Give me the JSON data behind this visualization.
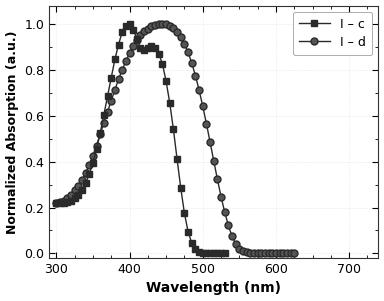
{
  "title": "",
  "xlabel": "Wavelength (nm)",
  "ylabel": "Normalized Absorption (a.u.)",
  "xlim": [
    290,
    740
  ],
  "ylim": [
    -0.02,
    1.08
  ],
  "xticks": [
    300,
    400,
    500,
    600,
    700
  ],
  "yticks": [
    0.0,
    0.2,
    0.4,
    0.6,
    0.8,
    1.0
  ],
  "line_color": "#2a2a2a",
  "legend_labels": [
    "I – c",
    "I – d"
  ],
  "background_color": "#ffffff",
  "marker_c": "s",
  "marker_d": "o",
  "markersize_c": 4,
  "markersize_d": 5,
  "curve_c": {
    "x": [
      300,
      305,
      310,
      315,
      320,
      325,
      330,
      335,
      340,
      345,
      350,
      355,
      360,
      365,
      370,
      375,
      380,
      385,
      390,
      395,
      400,
      405,
      410,
      415,
      420,
      425,
      430,
      435,
      440,
      445,
      450,
      455,
      460,
      465,
      470,
      475,
      480,
      485,
      490,
      495,
      500,
      505,
      510,
      515,
      520,
      525,
      530
    ],
    "y": [
      0.22,
      0.22,
      0.22,
      0.225,
      0.23,
      0.24,
      0.255,
      0.275,
      0.305,
      0.345,
      0.395,
      0.455,
      0.525,
      0.605,
      0.685,
      0.765,
      0.845,
      0.91,
      0.965,
      0.99,
      1.0,
      0.975,
      0.935,
      0.895,
      0.885,
      0.895,
      0.905,
      0.895,
      0.87,
      0.825,
      0.75,
      0.655,
      0.54,
      0.41,
      0.285,
      0.175,
      0.095,
      0.045,
      0.018,
      0.007,
      0.003,
      0.001,
      0.0,
      0.0,
      0.0,
      0.0,
      0.0
    ]
  },
  "curve_d": {
    "x": [
      300,
      305,
      310,
      315,
      320,
      325,
      330,
      335,
      340,
      345,
      350,
      355,
      360,
      365,
      370,
      375,
      380,
      385,
      390,
      395,
      400,
      405,
      410,
      415,
      420,
      425,
      430,
      435,
      440,
      445,
      450,
      455,
      460,
      465,
      470,
      475,
      480,
      485,
      490,
      495,
      500,
      505,
      510,
      515,
      520,
      525,
      530,
      535,
      540,
      545,
      550,
      555,
      560,
      565,
      570,
      575,
      580,
      585,
      590,
      595,
      600,
      605,
      610,
      615,
      620,
      625
    ],
    "y": [
      0.22,
      0.225,
      0.23,
      0.24,
      0.255,
      0.275,
      0.295,
      0.32,
      0.35,
      0.385,
      0.425,
      0.47,
      0.52,
      0.57,
      0.618,
      0.665,
      0.713,
      0.758,
      0.8,
      0.838,
      0.872,
      0.902,
      0.928,
      0.95,
      0.967,
      0.98,
      0.989,
      0.995,
      0.999,
      1.0,
      0.998,
      0.992,
      0.982,
      0.966,
      0.944,
      0.914,
      0.876,
      0.83,
      0.775,
      0.712,
      0.642,
      0.566,
      0.486,
      0.404,
      0.324,
      0.248,
      0.18,
      0.122,
      0.075,
      0.042,
      0.021,
      0.01,
      0.005,
      0.002,
      0.001,
      0.0,
      0.0,
      0.0,
      0.0,
      0.0,
      0.0,
      0.0,
      0.0,
      0.0,
      0.0,
      0.0
    ]
  }
}
